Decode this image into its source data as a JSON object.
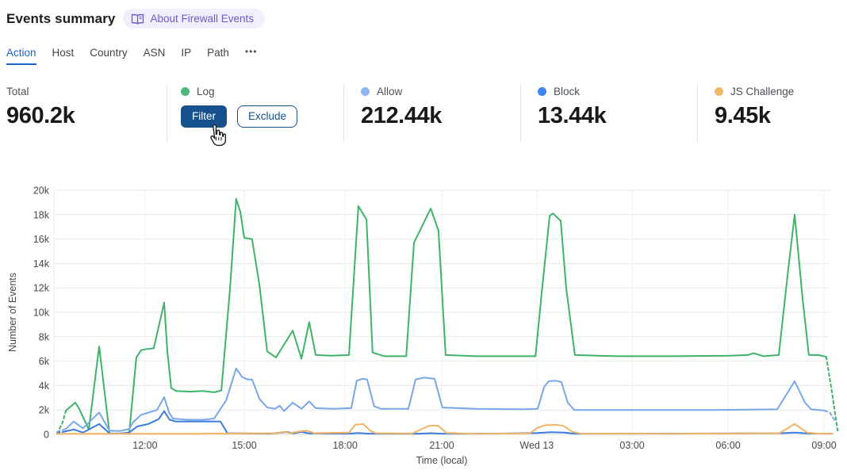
{
  "header": {
    "title": "Events summary",
    "about_badge": "About Firewall Events"
  },
  "tabs": [
    {
      "label": "Action",
      "active": true
    },
    {
      "label": "Host",
      "active": false
    },
    {
      "label": "Country",
      "active": false
    },
    {
      "label": "ASN",
      "active": false
    },
    {
      "label": "IP",
      "active": false
    },
    {
      "label": "Path",
      "active": false
    },
    {
      "label": "•••",
      "active": false
    }
  ],
  "stats": {
    "cards": [
      {
        "label": "Total",
        "value": "960.2k"
      },
      {
        "label": "Log",
        "dot_color": "#4eb77b",
        "filter_button": "Filter",
        "exclude_button": "Exclude"
      },
      {
        "label": "Allow",
        "value": "212.44k",
        "dot_color": "#8db5f2"
      },
      {
        "label": "Block",
        "value": "13.44k",
        "dot_color": "#3f83ee"
      },
      {
        "label": "JS Challenge",
        "value": "9.45k",
        "dot_color": "#f3ba66"
      }
    ]
  },
  "colors": {
    "accent_blue": "#1a62cc",
    "button_blue": "#16508d",
    "badge_purple": "#6c5cc9",
    "badge_bg": "#f1effb",
    "grid": "#e9e9e9",
    "axis_text": "#44474c"
  },
  "chart_data": {
    "type": "line",
    "title": "",
    "xlabel": "Time (local)",
    "ylabel": "Number of Events",
    "x_unit_note": "t = hours since chart start (~09:10); ticks mark local clock times",
    "xlim_hours": [
      0,
      24.3
    ],
    "ylim_k": [
      0,
      20
    ],
    "y_tick_step_k": 2,
    "y_ticks": [
      "0",
      "2k",
      "4k",
      "6k",
      "8k",
      "10k",
      "12k",
      "14k",
      "16k",
      "18k",
      "20k"
    ],
    "x_ticks": [
      {
        "t": 2.82,
        "label": "12:00"
      },
      {
        "t": 5.89,
        "label": "15:00"
      },
      {
        "t": 9.01,
        "label": "18:00"
      },
      {
        "t": 12.0,
        "label": "21:00"
      },
      {
        "t": 14.94,
        "label": "Wed 13"
      },
      {
        "t": 17.89,
        "label": "03:00"
      },
      {
        "t": 20.86,
        "label": "06:00"
      },
      {
        "t": 23.83,
        "label": "09:00"
      }
    ],
    "grid": true,
    "legend_position": "stat-cards-above",
    "values_in": "thousands of events",
    "series": [
      {
        "name": "Log",
        "color": "#3db36a",
        "dash_start": [
          [
            0.1,
            0.05
          ],
          [
            0.27,
            1.0
          ],
          [
            0.37,
            1.95
          ]
        ],
        "points": [
          [
            0.37,
            1.95
          ],
          [
            0.66,
            2.6
          ],
          [
            0.76,
            2.2
          ],
          [
            1.08,
            0.4
          ],
          [
            1.4,
            7.2
          ],
          [
            1.72,
            0.07
          ],
          [
            2.06,
            0.07
          ],
          [
            2.33,
            0.1
          ],
          [
            2.55,
            6.3
          ],
          [
            2.7,
            6.9
          ],
          [
            2.9,
            7.0
          ],
          [
            3.09,
            7.05
          ],
          [
            3.41,
            10.8
          ],
          [
            3.51,
            6.8
          ],
          [
            3.63,
            3.8
          ],
          [
            3.78,
            3.55
          ],
          [
            4.22,
            3.5
          ],
          [
            4.59,
            3.55
          ],
          [
            4.96,
            3.45
          ],
          [
            5.18,
            3.6
          ],
          [
            5.45,
            12.0
          ],
          [
            5.64,
            19.3
          ],
          [
            5.77,
            18.2
          ],
          [
            5.89,
            16.1
          ],
          [
            6.13,
            16.0
          ],
          [
            6.36,
            12.2
          ],
          [
            6.6,
            6.8
          ],
          [
            6.87,
            6.3
          ],
          [
            7.39,
            8.5
          ],
          [
            7.66,
            6.2
          ],
          [
            7.9,
            9.2
          ],
          [
            8.1,
            6.5
          ],
          [
            8.59,
            6.45
          ],
          [
            9.13,
            6.5
          ],
          [
            9.42,
            18.7
          ],
          [
            9.67,
            17.6
          ],
          [
            9.86,
            6.7
          ],
          [
            10.23,
            6.4
          ],
          [
            10.9,
            6.4
          ],
          [
            11.14,
            15.7
          ],
          [
            11.66,
            18.5
          ],
          [
            11.9,
            16.7
          ],
          [
            12.12,
            6.5
          ],
          [
            13.06,
            6.4
          ],
          [
            14.28,
            6.4
          ],
          [
            14.9,
            6.4
          ],
          [
            15.09,
            11.5
          ],
          [
            15.34,
            17.9
          ],
          [
            15.44,
            18.1
          ],
          [
            15.68,
            17.5
          ],
          [
            15.85,
            12.0
          ],
          [
            16.12,
            6.5
          ],
          [
            17.47,
            6.4
          ],
          [
            19.19,
            6.4
          ],
          [
            20.91,
            6.45
          ],
          [
            21.47,
            6.5
          ],
          [
            21.65,
            6.65
          ],
          [
            21.96,
            6.4
          ],
          [
            22.43,
            6.5
          ],
          [
            22.7,
            13.0
          ],
          [
            22.92,
            18.0
          ],
          [
            23.17,
            11.0
          ],
          [
            23.36,
            6.5
          ],
          [
            23.66,
            6.5
          ],
          [
            23.9,
            6.35
          ]
        ],
        "dash_end": [
          [
            23.9,
            6.35
          ],
          [
            24.07,
            3.5
          ],
          [
            24.25,
            0.3
          ]
        ]
      },
      {
        "name": "Allow",
        "color": "#78a6ea",
        "dash_start": [
          [
            0.1,
            0.2
          ],
          [
            0.37,
            0.45
          ]
        ],
        "points": [
          [
            0.37,
            0.45
          ],
          [
            0.61,
            1.05
          ],
          [
            0.9,
            0.5
          ],
          [
            1.4,
            1.8
          ],
          [
            1.72,
            0.3
          ],
          [
            2.06,
            0.28
          ],
          [
            2.33,
            0.45
          ],
          [
            2.45,
            1.0
          ],
          [
            2.7,
            1.6
          ],
          [
            2.94,
            1.8
          ],
          [
            3.19,
            2.0
          ],
          [
            3.41,
            3.05
          ],
          [
            3.56,
            1.8
          ],
          [
            3.68,
            1.3
          ],
          [
            4.1,
            1.2
          ],
          [
            4.66,
            1.2
          ],
          [
            4.96,
            1.3
          ],
          [
            5.33,
            2.8
          ],
          [
            5.64,
            5.4
          ],
          [
            5.82,
            4.7
          ],
          [
            5.99,
            4.5
          ],
          [
            6.13,
            4.5
          ],
          [
            6.36,
            2.9
          ],
          [
            6.6,
            2.2
          ],
          [
            6.85,
            2.1
          ],
          [
            6.99,
            2.35
          ],
          [
            7.12,
            1.9
          ],
          [
            7.39,
            2.6
          ],
          [
            7.66,
            2.1
          ],
          [
            7.9,
            2.7
          ],
          [
            8.1,
            2.15
          ],
          [
            8.64,
            2.1
          ],
          [
            9.2,
            2.15
          ],
          [
            9.37,
            4.4
          ],
          [
            9.55,
            4.55
          ],
          [
            9.69,
            4.5
          ],
          [
            9.91,
            2.3
          ],
          [
            10.11,
            2.1
          ],
          [
            10.97,
            2.1
          ],
          [
            11.19,
            4.5
          ],
          [
            11.46,
            4.65
          ],
          [
            11.78,
            4.55
          ],
          [
            12.02,
            2.2
          ],
          [
            13.06,
            2.1
          ],
          [
            14.53,
            2.05
          ],
          [
            14.97,
            2.1
          ],
          [
            15.17,
            3.9
          ],
          [
            15.31,
            4.35
          ],
          [
            15.51,
            4.4
          ],
          [
            15.7,
            4.3
          ],
          [
            15.9,
            2.6
          ],
          [
            16.1,
            2.0
          ],
          [
            17.96,
            2.0
          ],
          [
            20.42,
            2.0
          ],
          [
            22.38,
            2.05
          ],
          [
            22.92,
            4.35
          ],
          [
            23.24,
            2.6
          ],
          [
            23.43,
            2.05
          ],
          [
            23.85,
            1.95
          ]
        ],
        "dash_end": [
          [
            23.85,
            1.95
          ],
          [
            24.02,
            1.75
          ],
          [
            24.17,
            1.1
          ]
        ]
      },
      {
        "name": "Block",
        "color": "#3c7ce0",
        "dash_start": [
          [
            0.1,
            0.1
          ],
          [
            0.37,
            0.25
          ]
        ],
        "points": [
          [
            0.37,
            0.25
          ],
          [
            0.61,
            0.4
          ],
          [
            0.9,
            0.15
          ],
          [
            1.4,
            0.85
          ],
          [
            1.72,
            0.08
          ],
          [
            2.06,
            0.07
          ],
          [
            2.33,
            0.15
          ],
          [
            2.58,
            0.65
          ],
          [
            2.92,
            0.85
          ],
          [
            3.24,
            1.25
          ],
          [
            3.41,
            1.9
          ],
          [
            3.58,
            1.2
          ],
          [
            3.78,
            1.05
          ],
          [
            4.47,
            1.05
          ],
          [
            5.15,
            1.05
          ],
          [
            5.37,
            0.1
          ],
          [
            6.67,
            0.06
          ],
          [
            7.04,
            0.15
          ],
          [
            7.21,
            0.2
          ],
          [
            7.41,
            0.08
          ],
          [
            7.66,
            0.2
          ],
          [
            7.9,
            0.08
          ],
          [
            9.13,
            0.06
          ],
          [
            9.42,
            0.12
          ],
          [
            9.72,
            0.06
          ],
          [
            11.34,
            0.06
          ],
          [
            11.66,
            0.1
          ],
          [
            11.98,
            0.06
          ],
          [
            13.55,
            0.06
          ],
          [
            14.97,
            0.12
          ],
          [
            15.39,
            0.18
          ],
          [
            15.8,
            0.15
          ],
          [
            16.1,
            0.06
          ],
          [
            19.19,
            0.06
          ],
          [
            22.5,
            0.1
          ],
          [
            22.94,
            0.15
          ],
          [
            23.36,
            0.07
          ],
          [
            24.05,
            0.06
          ]
        ]
      },
      {
        "name": "JS Challenge",
        "color": "#f0b464",
        "points": [
          [
            0.1,
            0.05
          ],
          [
            2.01,
            0.05
          ],
          [
            4.47,
            0.05
          ],
          [
            6.92,
            0.1
          ],
          [
            7.12,
            0.22
          ],
          [
            7.31,
            0.1
          ],
          [
            7.61,
            0.25
          ],
          [
            7.85,
            0.3
          ],
          [
            8.05,
            0.1
          ],
          [
            9.13,
            0.15
          ],
          [
            9.33,
            0.8
          ],
          [
            9.57,
            0.85
          ],
          [
            9.79,
            0.3
          ],
          [
            9.96,
            0.1
          ],
          [
            11.09,
            0.08
          ],
          [
            11.39,
            0.45
          ],
          [
            11.61,
            0.7
          ],
          [
            11.88,
            0.72
          ],
          [
            12.15,
            0.12
          ],
          [
            13.06,
            0.05
          ],
          [
            14.72,
            0.08
          ],
          [
            14.97,
            0.55
          ],
          [
            15.21,
            0.75
          ],
          [
            15.51,
            0.78
          ],
          [
            15.75,
            0.72
          ],
          [
            16.05,
            0.2
          ],
          [
            16.29,
            0.07
          ],
          [
            19.19,
            0.05
          ],
          [
            21.4,
            0.08
          ],
          [
            22.45,
            0.1
          ],
          [
            22.92,
            0.85
          ],
          [
            23.31,
            0.15
          ],
          [
            23.6,
            0.07
          ],
          [
            24.1,
            0.05
          ]
        ]
      }
    ]
  }
}
